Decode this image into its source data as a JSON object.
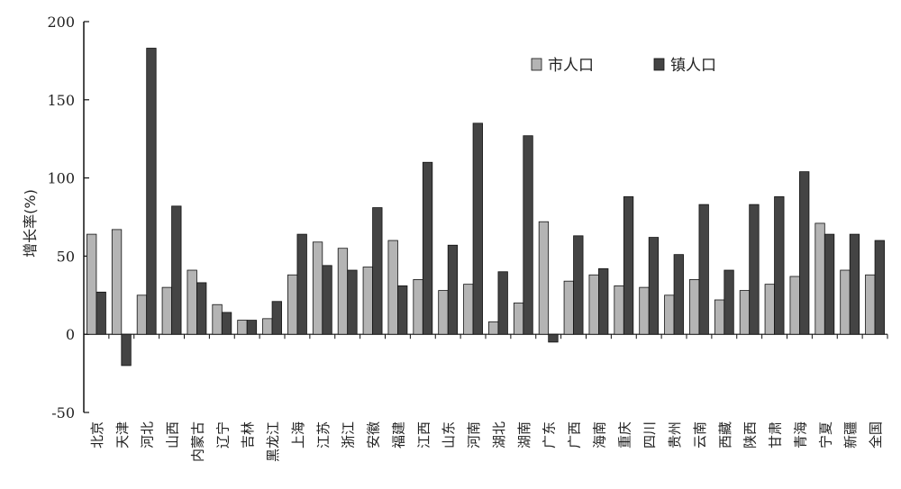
{
  "chart_data": {
    "type": "bar",
    "title": "",
    "xlabel": "",
    "ylabel": "增长率(%)",
    "ylim": [
      -50,
      200
    ],
    "yticks": [
      -50,
      0,
      50,
      100,
      150,
      200
    ],
    "grid": false,
    "legend_position": "top-right",
    "categories": [
      "北京",
      "天津",
      "河北",
      "山西",
      "内蒙古",
      "辽宁",
      "吉林",
      "黑龙江",
      "上海",
      "江苏",
      "浙江",
      "安徽",
      "福建",
      "江西",
      "山东",
      "河南",
      "湖北",
      "湖南",
      "广东",
      "广西",
      "海南",
      "重庆",
      "四川",
      "贵州",
      "云南",
      "西藏",
      "陕西",
      "甘肃",
      "青海",
      "宁夏",
      "新疆",
      "全国"
    ],
    "series": [
      {
        "name": "市人口",
        "color": "#b4b4b4",
        "values": [
          64,
          67,
          25,
          30,
          41,
          19,
          9,
          10,
          38,
          59,
          55,
          43,
          60,
          35,
          28,
          32,
          8,
          20,
          72,
          34,
          38,
          31,
          30,
          25,
          35,
          22,
          28,
          32,
          37,
          71,
          41,
          38
        ]
      },
      {
        "name": "镇人口",
        "color": "#444444",
        "values": [
          27,
          -20,
          183,
          82,
          33,
          14,
          9,
          21,
          64,
          44,
          41,
          81,
          31,
          110,
          57,
          135,
          40,
          127,
          -5,
          63,
          42,
          88,
          62,
          51,
          83,
          41,
          83,
          88,
          104,
          64,
          64,
          60
        ]
      }
    ]
  }
}
